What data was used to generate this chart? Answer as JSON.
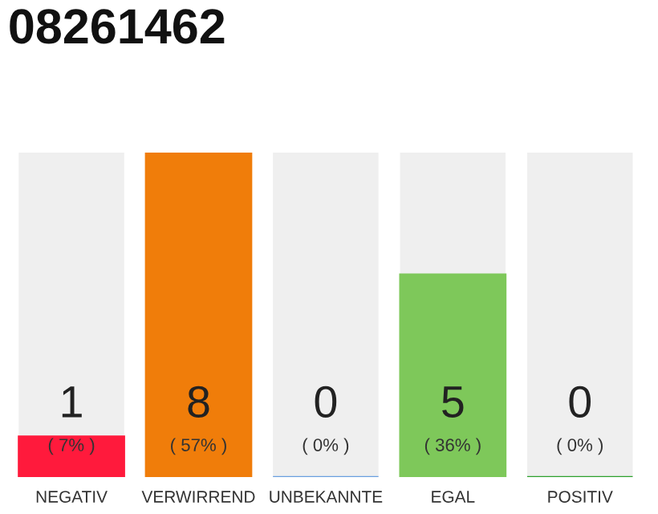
{
  "chart_data": {
    "type": "bar",
    "title": "08261462",
    "categories": [
      "NEGATIV",
      "VERWIRREND",
      "UNBEKANNTE",
      "EGAL",
      "POSITIV"
    ],
    "values": [
      1,
      8,
      0,
      5,
      0
    ],
    "colors": [
      "#ff1a3c",
      "#f07d0a",
      "#6a9fe0",
      "#7ec85a",
      "#2ca02c"
    ],
    "value_labels": [
      "1\n( 7% )",
      "8\n( 57% )",
      "0\n( 0% )",
      "5\n( 36% )",
      "0\n( 0% )"
    ],
    "ylim": [
      0,
      8
    ],
    "tick_labels": "x",
    "grid": false,
    "legend": false
  }
}
